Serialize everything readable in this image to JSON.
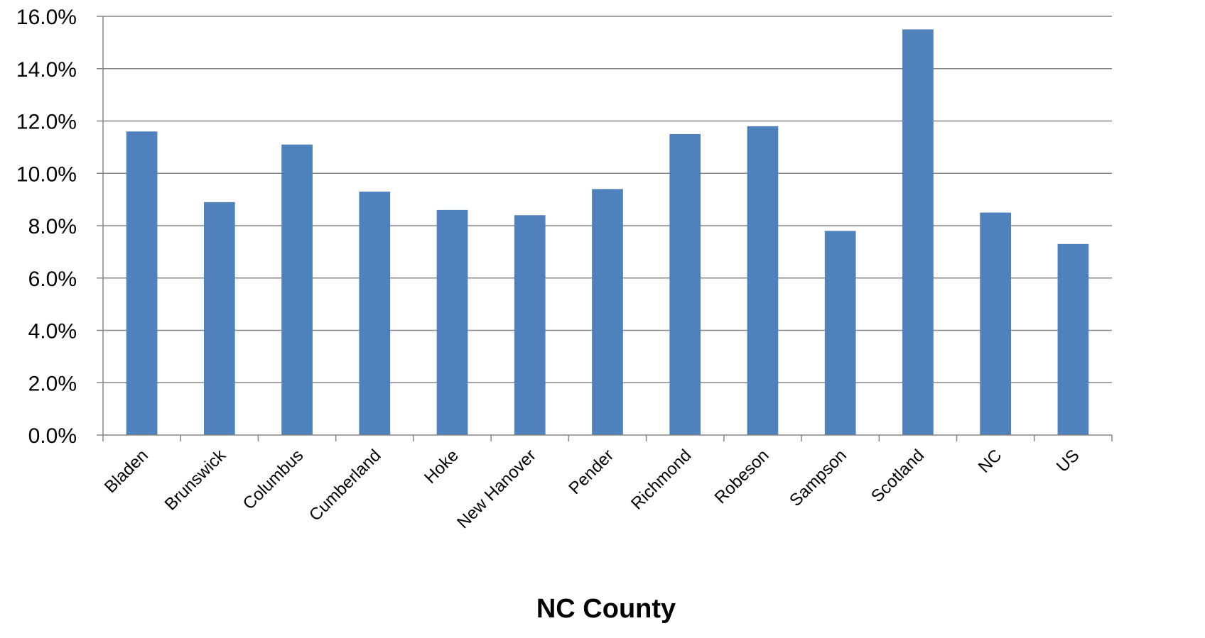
{
  "chart_data": {
    "type": "bar",
    "categories": [
      "Bladen",
      "Brunswick",
      "Columbus",
      "Cumberland",
      "Hoke",
      "New Hanover",
      "Pender",
      "Richmond",
      "Robeson",
      "Sampson",
      "Scotland",
      "NC",
      "US"
    ],
    "values": [
      11.6,
      8.9,
      11.1,
      9.3,
      8.6,
      8.4,
      9.4,
      11.5,
      11.8,
      7.8,
      15.5,
      8.5,
      7.3
    ],
    "value_unit": "%",
    "title": "",
    "xlabel": "NC County",
    "ylabel": "",
    "ylim": [
      0,
      16
    ],
    "yticks": [
      "0.0%",
      "2.0%",
      "4.0%",
      "6.0%",
      "8.0%",
      "10.0%",
      "12.0%",
      "14.0%",
      "16.0%"
    ],
    "grid": true,
    "legend": "none",
    "bar_color": "#4f81bd"
  }
}
